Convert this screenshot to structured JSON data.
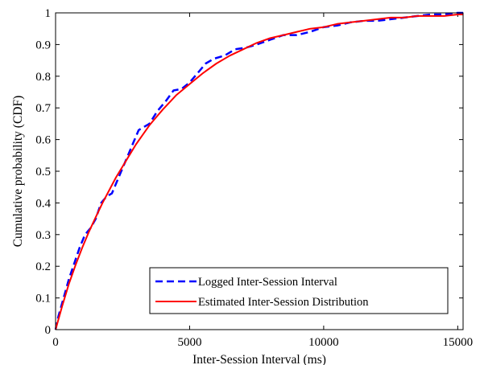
{
  "chart_data": {
    "type": "line",
    "title": "",
    "xlabel": "Inter-Session Interval (ms)",
    "ylabel": "Cumulative probability (CDF)",
    "xlim": [
      0,
      15200
    ],
    "ylim": [
      0,
      1
    ],
    "xticks": [
      0,
      5000,
      10000,
      15000
    ],
    "xtick_labels": [
      "0",
      "5000",
      "10000",
      "15000"
    ],
    "yticks": [
      0,
      0.1,
      0.2,
      0.3,
      0.4,
      0.5,
      0.6,
      0.7,
      0.8,
      0.9,
      1
    ],
    "ytick_labels": [
      "0",
      "0.1",
      "0.2",
      "0.3",
      "0.4",
      "0.5",
      "0.6",
      "0.7",
      "0.8",
      "0.9",
      "1"
    ],
    "grid": false,
    "legend_position": "bottom-right",
    "series": [
      {
        "name": "Logged Inter-Session Interval",
        "color": "#0000ff",
        "style": "dashed",
        "x": [
          0,
          100,
          300,
          500,
          700,
          900,
          1100,
          1300,
          1500,
          1700,
          1900,
          2100,
          2300,
          2500,
          2700,
          2900,
          3100,
          3300,
          3500,
          3800,
          4100,
          4400,
          4700,
          5000,
          5300,
          5600,
          5900,
          6300,
          6700,
          7100,
          7500,
          8000,
          8500,
          9000,
          9500,
          10000,
          10500,
          11000,
          11500,
          12000,
          12500,
          13000,
          13500,
          14000,
          14500,
          15000,
          15200
        ],
        "y": [
          0,
          0.04,
          0.1,
          0.16,
          0.21,
          0.26,
          0.3,
          0.32,
          0.35,
          0.4,
          0.42,
          0.43,
          0.47,
          0.51,
          0.55,
          0.59,
          0.63,
          0.64,
          0.65,
          0.69,
          0.72,
          0.755,
          0.76,
          0.78,
          0.81,
          0.84,
          0.855,
          0.865,
          0.885,
          0.89,
          0.9,
          0.915,
          0.93,
          0.93,
          0.94,
          0.955,
          0.96,
          0.97,
          0.975,
          0.975,
          0.98,
          0.985,
          0.99,
          0.995,
          0.995,
          1.0,
          1.0
        ]
      },
      {
        "name": "Estimated Inter-Session Distribution",
        "color": "#ff0000",
        "style": "solid",
        "x": [
          0,
          250,
          500,
          750,
          1000,
          1250,
          1500,
          1750,
          2000,
          2250,
          2500,
          2750,
          3000,
          3250,
          3500,
          3750,
          4000,
          4500,
          5000,
          5500,
          6000,
          6500,
          7000,
          7500,
          8000,
          8500,
          9000,
          9500,
          10000,
          10500,
          11000,
          11500,
          12000,
          12500,
          13000,
          13500,
          14000,
          14500,
          15000,
          15200
        ],
        "y": [
          0,
          0.075,
          0.145,
          0.205,
          0.26,
          0.31,
          0.355,
          0.4,
          0.44,
          0.48,
          0.515,
          0.55,
          0.585,
          0.615,
          0.645,
          0.67,
          0.695,
          0.74,
          0.775,
          0.81,
          0.84,
          0.865,
          0.885,
          0.905,
          0.92,
          0.93,
          0.94,
          0.95,
          0.955,
          0.965,
          0.97,
          0.975,
          0.98,
          0.985,
          0.985,
          0.99,
          0.99,
          0.99,
          0.995,
          0.995
        ]
      }
    ]
  }
}
